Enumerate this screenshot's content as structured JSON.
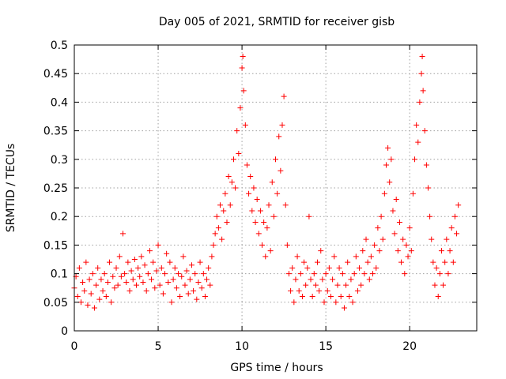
{
  "chart_data": {
    "type": "scatter",
    "title": "Day 005 of 2021, SRMTID for receiver gisb",
    "xlabel": "GPS time / hours",
    "ylabel": "SRMTID / TECUs",
    "xlim": [
      0,
      24
    ],
    "ylim": [
      0,
      0.5
    ],
    "x_ticks": [
      0,
      5,
      10,
      15,
      20
    ],
    "x_tick_labels": [
      "0",
      "5",
      "10",
      "15",
      "20"
    ],
    "y_ticks": [
      0,
      0.05,
      0.1,
      0.15,
      0.2,
      0.25,
      0.3,
      0.35,
      0.4,
      0.45,
      0.5
    ],
    "y_tick_labels": [
      "0",
      "0.05",
      "0.1",
      "0.15",
      "0.2",
      "0.25",
      "0.3",
      "0.35",
      "0.4",
      "0.45",
      "0.5"
    ],
    "grid": true,
    "marker": "plus",
    "colors": {
      "series": "#ff0000",
      "grid": "#a0a0a0",
      "axis": "#000000"
    },
    "series": [
      {
        "name": "SRMTID",
        "points": [
          [
            0.0,
            0.075
          ],
          [
            0.1,
            0.095
          ],
          [
            0.2,
            0.06
          ],
          [
            0.3,
            0.11
          ],
          [
            0.4,
            0.05
          ],
          [
            0.5,
            0.085
          ],
          [
            0.6,
            0.07
          ],
          [
            0.7,
            0.12
          ],
          [
            0.8,
            0.045
          ],
          [
            0.9,
            0.09
          ],
          [
            1.0,
            0.065
          ],
          [
            1.1,
            0.1
          ],
          [
            1.2,
            0.04
          ],
          [
            1.3,
            0.08
          ],
          [
            1.4,
            0.11
          ],
          [
            1.5,
            0.055
          ],
          [
            1.6,
            0.09
          ],
          [
            1.7,
            0.07
          ],
          [
            1.8,
            0.1
          ],
          [
            1.9,
            0.06
          ],
          [
            2.0,
            0.085
          ],
          [
            2.1,
            0.12
          ],
          [
            2.2,
            0.05
          ],
          [
            2.3,
            0.095
          ],
          [
            2.4,
            0.075
          ],
          [
            2.5,
            0.11
          ],
          [
            2.6,
            0.08
          ],
          [
            2.7,
            0.13
          ],
          [
            2.8,
            0.095
          ],
          [
            2.9,
            0.17
          ],
          [
            3.0,
            0.1
          ],
          [
            3.1,
            0.085
          ],
          [
            3.2,
            0.12
          ],
          [
            3.3,
            0.07
          ],
          [
            3.4,
            0.105
          ],
          [
            3.5,
            0.09
          ],
          [
            3.6,
            0.125
          ],
          [
            3.7,
            0.08
          ],
          [
            3.8,
            0.11
          ],
          [
            3.9,
            0.095
          ],
          [
            4.0,
            0.13
          ],
          [
            4.1,
            0.085
          ],
          [
            4.2,
            0.115
          ],
          [
            4.3,
            0.07
          ],
          [
            4.4,
            0.1
          ],
          [
            4.5,
            0.14
          ],
          [
            4.6,
            0.09
          ],
          [
            4.7,
            0.12
          ],
          [
            4.8,
            0.075
          ],
          [
            4.9,
            0.105
          ],
          [
            5.0,
            0.15
          ],
          [
            5.1,
            0.08
          ],
          [
            5.2,
            0.11
          ],
          [
            5.3,
            0.065
          ],
          [
            5.4,
            0.1
          ],
          [
            5.5,
            0.135
          ],
          [
            5.6,
            0.085
          ],
          [
            5.7,
            0.12
          ],
          [
            5.8,
            0.05
          ],
          [
            5.9,
            0.09
          ],
          [
            6.0,
            0.11
          ],
          [
            6.1,
            0.075
          ],
          [
            6.2,
            0.1
          ],
          [
            6.3,
            0.06
          ],
          [
            6.4,
            0.095
          ],
          [
            6.5,
            0.13
          ],
          [
            6.6,
            0.08
          ],
          [
            6.7,
            0.105
          ],
          [
            6.8,
            0.065
          ],
          [
            6.9,
            0.09
          ],
          [
            7.0,
            0.115
          ],
          [
            7.1,
            0.07
          ],
          [
            7.2,
            0.1
          ],
          [
            7.3,
            0.055
          ],
          [
            7.4,
            0.085
          ],
          [
            7.5,
            0.12
          ],
          [
            7.6,
            0.075
          ],
          [
            7.7,
            0.1
          ],
          [
            7.8,
            0.06
          ],
          [
            7.9,
            0.09
          ],
          [
            8.0,
            0.11
          ],
          [
            8.1,
            0.08
          ],
          [
            8.2,
            0.13
          ],
          [
            8.3,
            0.15
          ],
          [
            8.4,
            0.17
          ],
          [
            8.5,
            0.2
          ],
          [
            8.6,
            0.18
          ],
          [
            8.7,
            0.22
          ],
          [
            8.8,
            0.16
          ],
          [
            8.9,
            0.21
          ],
          [
            9.0,
            0.24
          ],
          [
            9.1,
            0.19
          ],
          [
            9.2,
            0.27
          ],
          [
            9.3,
            0.22
          ],
          [
            9.4,
            0.26
          ],
          [
            9.5,
            0.3
          ],
          [
            9.6,
            0.25
          ],
          [
            9.7,
            0.35
          ],
          [
            9.8,
            0.31
          ],
          [
            9.9,
            0.39
          ],
          [
            10.0,
            0.46
          ],
          [
            10.05,
            0.48
          ],
          [
            10.1,
            0.42
          ],
          [
            10.2,
            0.36
          ],
          [
            10.3,
            0.29
          ],
          [
            10.4,
            0.24
          ],
          [
            10.5,
            0.27
          ],
          [
            10.6,
            0.21
          ],
          [
            10.7,
            0.25
          ],
          [
            10.8,
            0.19
          ],
          [
            10.9,
            0.23
          ],
          [
            11.0,
            0.17
          ],
          [
            11.1,
            0.21
          ],
          [
            11.2,
            0.15
          ],
          [
            11.3,
            0.19
          ],
          [
            11.4,
            0.13
          ],
          [
            11.5,
            0.18
          ],
          [
            11.6,
            0.22
          ],
          [
            11.7,
            0.14
          ],
          [
            11.8,
            0.26
          ],
          [
            11.9,
            0.2
          ],
          [
            12.0,
            0.3
          ],
          [
            12.1,
            0.24
          ],
          [
            12.2,
            0.34
          ],
          [
            12.3,
            0.28
          ],
          [
            12.4,
            0.36
          ],
          [
            12.5,
            0.41
          ],
          [
            12.6,
            0.22
          ],
          [
            12.7,
            0.15
          ],
          [
            12.8,
            0.1
          ],
          [
            12.9,
            0.07
          ],
          [
            13.0,
            0.11
          ],
          [
            13.1,
            0.05
          ],
          [
            13.2,
            0.09
          ],
          [
            13.3,
            0.13
          ],
          [
            13.4,
            0.07
          ],
          [
            13.5,
            0.1
          ],
          [
            13.6,
            0.06
          ],
          [
            13.7,
            0.12
          ],
          [
            13.8,
            0.08
          ],
          [
            13.9,
            0.11
          ],
          [
            14.0,
            0.2
          ],
          [
            14.1,
            0.09
          ],
          [
            14.2,
            0.06
          ],
          [
            14.3,
            0.1
          ],
          [
            14.4,
            0.08
          ],
          [
            14.5,
            0.12
          ],
          [
            14.6,
            0.07
          ],
          [
            14.7,
            0.14
          ],
          [
            14.8,
            0.09
          ],
          [
            14.9,
            0.05
          ],
          [
            15.0,
            0.1
          ],
          [
            15.1,
            0.07
          ],
          [
            15.2,
            0.11
          ],
          [
            15.3,
            0.06
          ],
          [
            15.4,
            0.09
          ],
          [
            15.5,
            0.13
          ],
          [
            15.6,
            0.05
          ],
          [
            15.7,
            0.08
          ],
          [
            15.8,
            0.11
          ],
          [
            15.9,
            0.06
          ],
          [
            16.0,
            0.1
          ],
          [
            16.1,
            0.04
          ],
          [
            16.2,
            0.08
          ],
          [
            16.3,
            0.12
          ],
          [
            16.4,
            0.06
          ],
          [
            16.5,
            0.09
          ],
          [
            16.6,
            0.05
          ],
          [
            16.7,
            0.1
          ],
          [
            16.8,
            0.13
          ],
          [
            16.9,
            0.07
          ],
          [
            17.0,
            0.11
          ],
          [
            17.1,
            0.08
          ],
          [
            17.2,
            0.14
          ],
          [
            17.3,
            0.1
          ],
          [
            17.4,
            0.16
          ],
          [
            17.5,
            0.12
          ],
          [
            17.6,
            0.09
          ],
          [
            17.7,
            0.13
          ],
          [
            17.8,
            0.1
          ],
          [
            17.9,
            0.15
          ],
          [
            18.0,
            0.11
          ],
          [
            18.1,
            0.18
          ],
          [
            18.2,
            0.14
          ],
          [
            18.3,
            0.2
          ],
          [
            18.4,
            0.16
          ],
          [
            18.5,
            0.24
          ],
          [
            18.6,
            0.29
          ],
          [
            18.7,
            0.32
          ],
          [
            18.8,
            0.26
          ],
          [
            18.9,
            0.3
          ],
          [
            19.0,
            0.21
          ],
          [
            19.1,
            0.17
          ],
          [
            19.2,
            0.23
          ],
          [
            19.3,
            0.14
          ],
          [
            19.4,
            0.19
          ],
          [
            19.5,
            0.12
          ],
          [
            19.6,
            0.16
          ],
          [
            19.7,
            0.1
          ],
          [
            19.8,
            0.15
          ],
          [
            19.9,
            0.13
          ],
          [
            20.0,
            0.18
          ],
          [
            20.1,
            0.14
          ],
          [
            20.2,
            0.24
          ],
          [
            20.3,
            0.3
          ],
          [
            20.4,
            0.36
          ],
          [
            20.5,
            0.33
          ],
          [
            20.6,
            0.4
          ],
          [
            20.7,
            0.45
          ],
          [
            20.75,
            0.48
          ],
          [
            20.8,
            0.42
          ],
          [
            20.9,
            0.35
          ],
          [
            21.0,
            0.29
          ],
          [
            21.1,
            0.25
          ],
          [
            21.2,
            0.2
          ],
          [
            21.3,
            0.16
          ],
          [
            21.4,
            0.12
          ],
          [
            21.5,
            0.08
          ],
          [
            21.6,
            0.11
          ],
          [
            21.7,
            0.06
          ],
          [
            21.8,
            0.1
          ],
          [
            21.9,
            0.14
          ],
          [
            22.0,
            0.08
          ],
          [
            22.1,
            0.12
          ],
          [
            22.2,
            0.16
          ],
          [
            22.3,
            0.1
          ],
          [
            22.4,
            0.14
          ],
          [
            22.5,
            0.18
          ],
          [
            22.6,
            0.12
          ],
          [
            22.7,
            0.2
          ],
          [
            22.8,
            0.17
          ],
          [
            22.9,
            0.22
          ]
        ]
      }
    ]
  }
}
